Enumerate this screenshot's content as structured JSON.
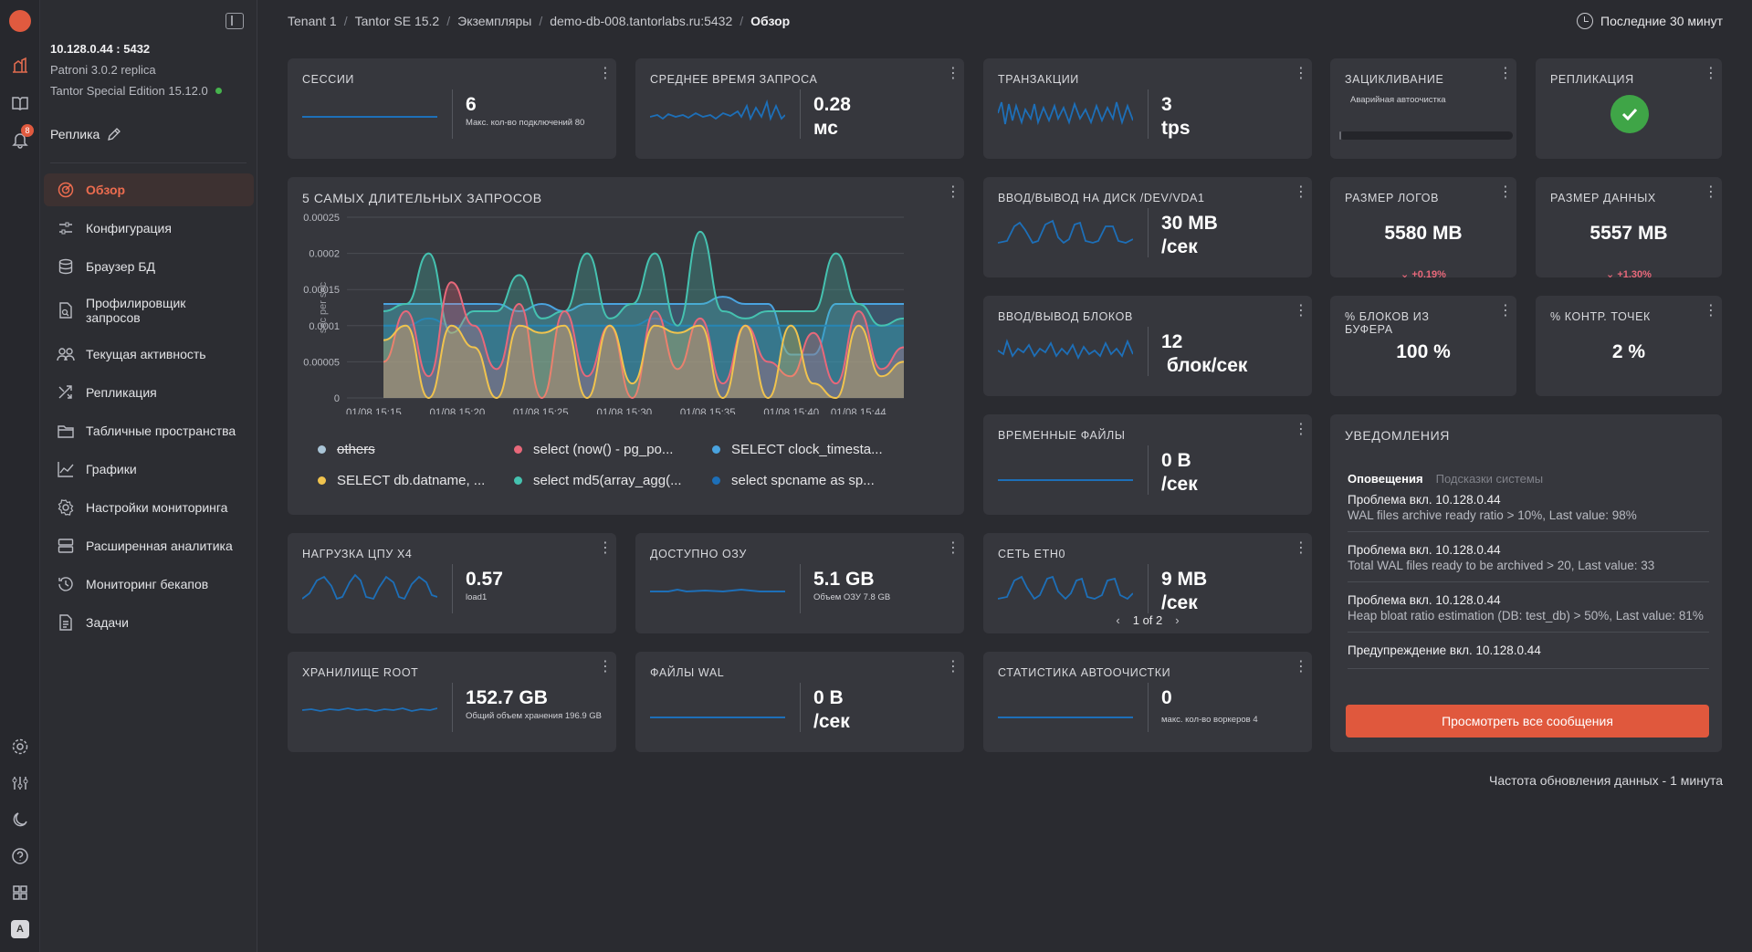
{
  "rail": {
    "notifications_count": "8",
    "avatar_letter": "A"
  },
  "sidebar": {
    "host": "10.128.0.44 : 5432",
    "patroni": "Patroni 3.0.2 replica",
    "edition": "Tantor Special Edition 15.12.0",
    "role": "Реплика",
    "items": [
      {
        "label": "Обзор",
        "icon": "target-icon"
      },
      {
        "label": "Конфигурация",
        "icon": "sliders-icon"
      },
      {
        "label": "Браузер БД",
        "icon": "database-icon"
      },
      {
        "label": "Профилировщик запросов",
        "icon": "document-search-icon"
      },
      {
        "label": "Текущая активность",
        "icon": "users-icon"
      },
      {
        "label": "Репликация",
        "icon": "shuffle-icon"
      },
      {
        "label": "Табличные пространства",
        "icon": "folder-icon"
      },
      {
        "label": "Графики",
        "icon": "line-chart-icon"
      },
      {
        "label": "Настройки мониторинга",
        "icon": "gear-icon"
      },
      {
        "label": "Расширенная аналитика",
        "icon": "server-icon"
      },
      {
        "label": "Мониторинг бекапов",
        "icon": "history-icon"
      },
      {
        "label": "Задачи",
        "icon": "file-icon"
      }
    ]
  },
  "breadcrumbs": [
    "Tenant 1",
    "Tantor SE 15.2",
    "Экземпляры",
    "demo-db-008.tantorlabs.ru:5432",
    "Обзор"
  ],
  "time_range": "Последние 30 минут",
  "cards": {
    "sessions": {
      "title": "Сессии",
      "value": "6",
      "note": "Макс. кол-во подключений 80"
    },
    "avg_query": {
      "title": "Среднее время запроса",
      "value": "0.28",
      "unit": "мс"
    },
    "transactions": {
      "title": "Транзакции",
      "value": "3",
      "unit": "tps"
    },
    "wraparound": {
      "title": "Зацикливание",
      "note": "Аварийная автоочистка",
      "progress": 0.01
    },
    "replication": {
      "title": "Репликация"
    },
    "disk_io": {
      "title": "Ввод/вывод на диск /dev/vda1",
      "value": "30 MB",
      "unit": "/сек"
    },
    "logs_size": {
      "title": "Размер логов",
      "value": "5580 MB",
      "delta": "+0.19%"
    },
    "data_size": {
      "title": "Размер данных",
      "value": "5557 MB",
      "delta": "+1.30%"
    },
    "block_io": {
      "title": "Ввод/вывод блоков",
      "value": "12",
      "unit": "блок/сек"
    },
    "buffer_blocks": {
      "title": "% блоков из буфера",
      "value": "100 %"
    },
    "checkpoints": {
      "title": "% контр. точек",
      "value": "2 %"
    },
    "temp_files": {
      "title": "Временные файлы",
      "value": "0 B",
      "unit": "/сек"
    },
    "cpu": {
      "title": "Нагрузка ЦПУ x4",
      "value": "0.57",
      "note": "load1"
    },
    "ram": {
      "title": "Доступно ОЗУ",
      "value": "5.1 GB",
      "note": "Объем ОЗУ 7.8 GB"
    },
    "network": {
      "title": "Сеть eth0",
      "value": "9 MB",
      "unit": "/сек",
      "pager": "1 of 2"
    },
    "storage": {
      "title": "Хранилище root",
      "value": "152.7 GB",
      "note": "Общий объем хранения 196.9 GB"
    },
    "wal": {
      "title": "Файлы WAL",
      "value": "0 B",
      "unit": "/сек"
    },
    "autovacuum": {
      "title": "Статистика автоочистки",
      "value": "0",
      "note": "макс. кол-во воркеров 4"
    }
  },
  "notifications": {
    "title": "Уведомления",
    "tabs": [
      "Оповещения",
      "Подсказки системы"
    ],
    "items": [
      {
        "head": "Проблема вкл. 10.128.0.44",
        "body": "WAL files archive ready ratio > 10%, Last value: 98%"
      },
      {
        "head": "Проблема вкл. 10.128.0.44",
        "body": "Total WAL files ready to be archived > 20, Last value: 33"
      },
      {
        "head": "Проблема вкл. 10.128.0.44",
        "body": "Heap bloat ratio estimation (DB: test_db) > 50%, Last value: 81%"
      },
      {
        "head": "Предупреждение вкл. 10.128.0.44",
        "body": ""
      }
    ],
    "button": "Просмотреть все сообщения"
  },
  "footer": "Частота обновления данных - 1 минута",
  "chart_data": {
    "type": "area",
    "title": "5 самых длительных запросов",
    "ylabel": "sec per sec",
    "ylim": [
      0,
      0.00025
    ],
    "yticks": [
      "0.00025",
      "0.0002",
      "0.00015",
      "0.0001",
      "0.00005",
      "0"
    ],
    "xticks": [
      "01/08 15:15",
      "01/08 15:20",
      "01/08 15:25",
      "01/08 15:30",
      "01/08 15:35",
      "01/08 15:40",
      "01/08 15:44"
    ],
    "series": [
      {
        "name": "others",
        "color": "#a9c4d6",
        "hidden": true,
        "values": []
      },
      {
        "name": "select (now() - pg_po...",
        "color": "#e8687a",
        "values": [
          5e-05,
          0.00012,
          3e-05,
          0.00016,
          0.0001,
          4e-05,
          0.00013,
          0.0,
          0.00012,
          3e-05,
          0.0001,
          0.0,
          0.00012,
          4e-05,
          0.00011,
          2e-05,
          0.0001,
          5e-05,
          3e-05,
          9e-05,
          2e-05,
          0.00012,
          4e-05,
          7e-05
        ]
      },
      {
        "name": "SELECT clock_timesta...",
        "color": "#4aa3df",
        "values": [
          0.00013,
          0.00013,
          0.00013,
          0.00013,
          0.00013,
          0.00013,
          0.00012,
          0.00013,
          0.00012,
          0.00013,
          0.00013,
          0.00013,
          0.00013,
          0.00013,
          0.00013,
          0.00014,
          0.00013,
          0.00013,
          6e-05,
          6e-05,
          0.00013,
          0.00013,
          0.00013,
          0.00013
        ]
      },
      {
        "name": "SELECT db.datname, ...",
        "color": "#f0c34e",
        "values": [
          8e-05,
          0.0001,
          0.0,
          0.0001,
          7e-05,
          0.0,
          0.0001,
          9e-05,
          0.0001,
          0.0,
          0.0001,
          2e-05,
          0.0001,
          9e-05,
          0.0001,
          0.0,
          0.0001,
          0.0,
          0.0001,
          2e-05,
          0.0,
          0.0001,
          3e-05,
          5e-05
        ]
      },
      {
        "name": "select md5(array_agg(...",
        "color": "#45c2b0",
        "values": [
          0.00012,
          0.00013,
          0.0002,
          9e-05,
          0.00012,
          0.00012,
          0.00017,
          0.00011,
          0.00012,
          0.0002,
          0.00011,
          0.00013,
          0.0002,
          0.0001,
          0.00023,
          0.00012,
          0.00011,
          0.00012,
          0.00012,
          0.00012,
          0.0002,
          0.00013,
          0.0001,
          0.00011
        ]
      },
      {
        "name": "select spcname as sp...",
        "color": "#1d6fb8",
        "values": [
          0.0001,
          0.0001,
          0.00011,
          0.0001,
          0.0001,
          0.0001,
          0.0001,
          0.0001,
          0.0001,
          0.0001,
          0.0001,
          0.0001,
          0.00011,
          0.0001,
          0.0001,
          0.0001,
          0.0001,
          0.0001,
          0.0001,
          0.0001,
          0.0001,
          0.0001,
          0.0001,
          0.0001
        ]
      }
    ]
  }
}
